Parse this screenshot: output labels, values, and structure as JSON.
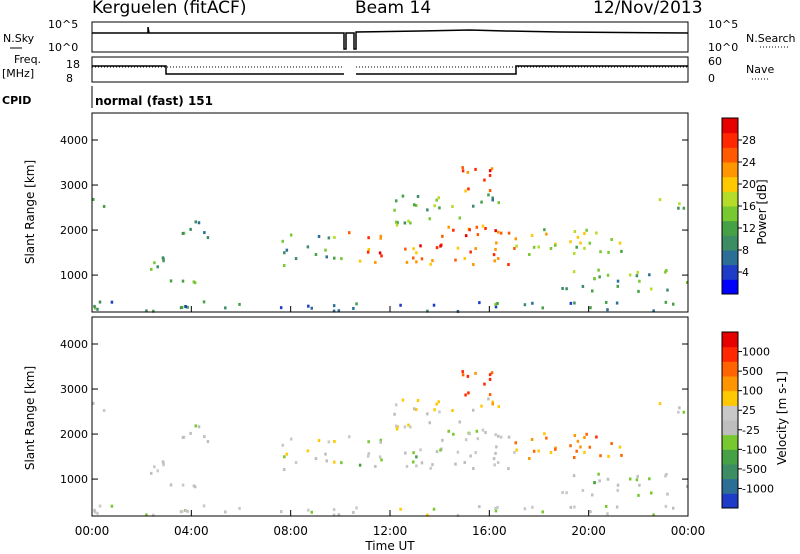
{
  "header": {
    "station": "Kerguelen (fitACF)",
    "beam": "Beam 14",
    "date": "12/Nov/2013"
  },
  "noise_panel": {
    "left_label": "N.Sky",
    "right_label": "N.Search",
    "left_ticks": [
      "10^5",
      "10^0"
    ],
    "right_ticks": [
      "10^5",
      "10^0"
    ]
  },
  "freq_panel": {
    "left_label_1": "Freq.",
    "left_label_2": "[MHz]",
    "right_label": "Nave",
    "left_ticks": [
      "18",
      "8"
    ],
    "right_ticks": [
      "60",
      "0"
    ]
  },
  "cpid": {
    "label": "CPID",
    "program": "normal (fast) 151"
  },
  "colors": {
    "power_scale": [
      "#0000ff",
      "#1e3cc8",
      "#2d6e96",
      "#3c8c64",
      "#46a046",
      "#78c832",
      "#b4dc28",
      "#ffc800",
      "#ff9600",
      "#ff5a00",
      "#ff2800",
      "#e60000"
    ],
    "velocity_scale": [
      "#1e3cc8",
      "#2d6e96",
      "#3c8c64",
      "#46a046",
      "#78c832",
      "#bebebe",
      "#c8c8c8",
      "#ffc800",
      "#ff9600",
      "#ff6400",
      "#ff2800",
      "#e60000"
    ]
  },
  "chart_data": [
    {
      "type": "heatmap",
      "quantity": "Power",
      "ylabel": "Slant Range [km]",
      "y_ticks": [
        1000,
        2000,
        3000,
        4000
      ],
      "ylim": [
        180,
        4600
      ],
      "xlim": [
        0,
        24
      ],
      "colorbar_label": "Power [dB]",
      "colorbar_ticks": [
        4,
        8,
        12,
        16,
        20,
        24,
        28
      ],
      "colorbar_range": [
        0,
        32
      ]
    },
    {
      "type": "heatmap",
      "quantity": "Velocity",
      "ylabel": "Slant Range [km]",
      "y_ticks": [
        1000,
        2000,
        3000,
        4000
      ],
      "ylim": [
        180,
        4600
      ],
      "xlim": [
        0,
        24
      ],
      "xlabel": "Time UT",
      "x_ticks": [
        "00:00",
        "04:00",
        "08:00",
        "12:00",
        "16:00",
        "20:00",
        "00:00"
      ],
      "colorbar_label": "Velocity [m s-1]",
      "colorbar_ticks": [
        "1000",
        "500",
        "100",
        "25",
        "-25",
        "-100",
        "-500",
        "-1000"
      ]
    }
  ]
}
